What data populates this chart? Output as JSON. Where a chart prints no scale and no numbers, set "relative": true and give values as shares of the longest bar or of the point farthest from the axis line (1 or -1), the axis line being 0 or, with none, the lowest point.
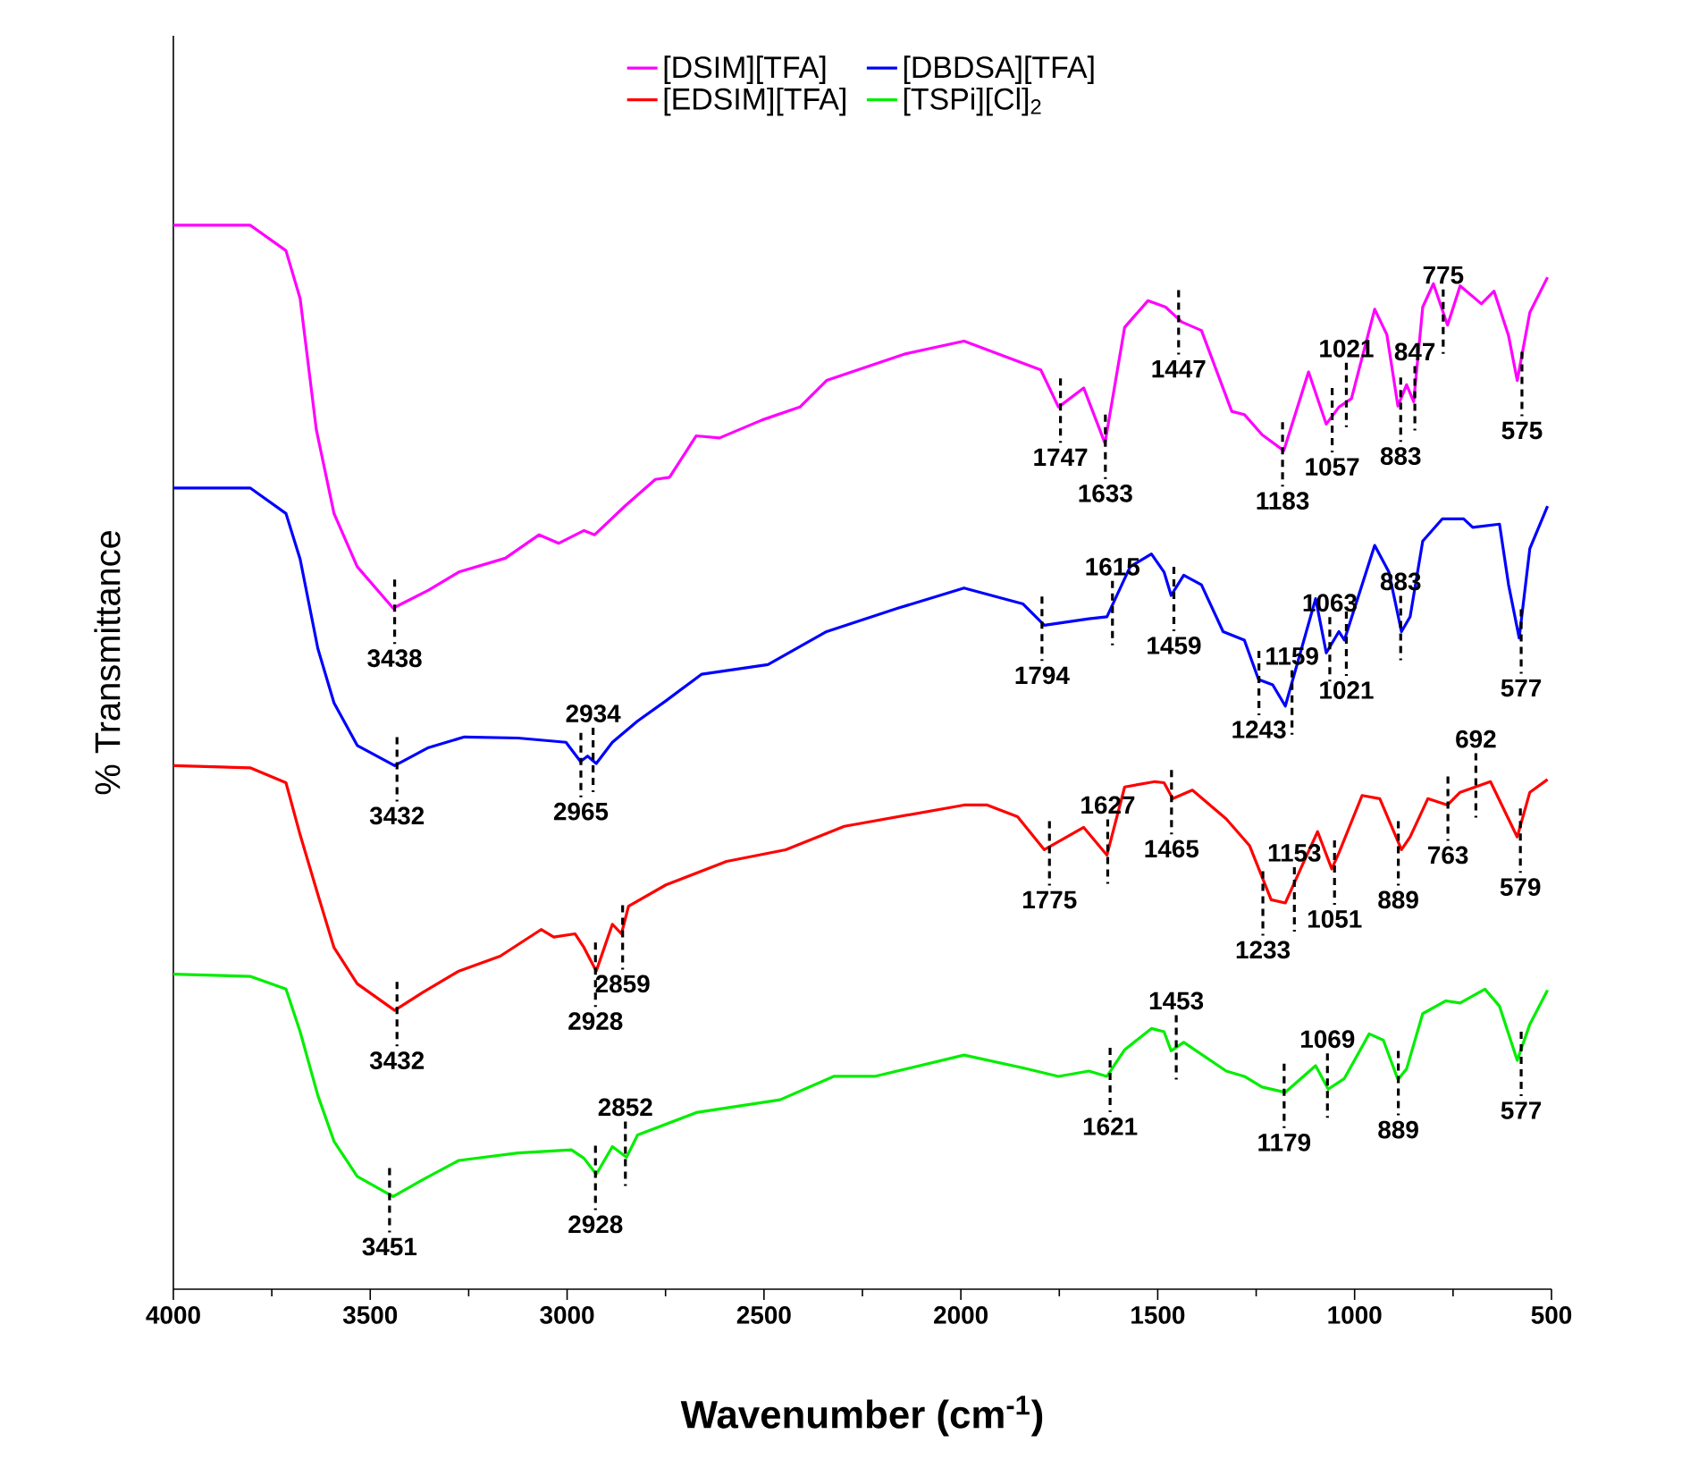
{
  "chart_data": {
    "type": "line",
    "relative": true,
    "xlabel": "Wavenumber (cm$^{-1}$)",
    "ylabel": "% Transmittance",
    "xlim": [
      4000,
      500
    ],
    "xticks": [
      4000,
      3500,
      3000,
      2500,
      2000,
      1500,
      1000,
      500
    ],
    "legend": "top",
    "grid": false,
    "series": [
      {
        "name": "[DSIM][TFA]",
        "color": "#ff00ff",
        "x": [
          4000,
          3805,
          3714,
          3678,
          3637,
          3592,
          3533,
          3442,
          3352,
          3275,
          3157,
          3071,
          3021,
          2957,
          2930,
          2853,
          2776,
          2740,
          2672,
          2613,
          2504,
          2409,
          2341,
          2141,
          1992,
          1797,
          1752,
          1688,
          1634,
          1584,
          1525,
          1480,
          1439,
          1389,
          1312,
          1280,
          1235,
          1180,
          1117,
          1072,
          1040,
          1008,
          949,
          918,
          890,
          868,
          850,
          827,
          800,
          764,
          732,
          678,
          646,
          609,
          587,
          555,
          510
        ],
        "values": [
          1.0,
          1.0,
          0.976,
          0.931,
          0.808,
          0.729,
          0.679,
          0.64,
          0.657,
          0.674,
          0.687,
          0.709,
          0.701,
          0.713,
          0.709,
          0.736,
          0.761,
          0.763,
          0.802,
          0.8,
          0.817,
          0.829,
          0.854,
          0.879,
          0.891,
          0.864,
          0.829,
          0.847,
          0.795,
          0.904,
          0.929,
          0.923,
          0.909,
          0.901,
          0.825,
          0.822,
          0.803,
          0.788,
          0.862,
          0.813,
          0.829,
          0.837,
          0.921,
          0.897,
          0.83,
          0.85,
          0.834,
          0.923,
          0.945,
          0.906,
          0.943,
          0.926,
          0.938,
          0.896,
          0.854,
          0.918,
          0.951
        ]
      },
      {
        "name": "[DBDSA][TFA]",
        "color": "#0000ff",
        "x": [
          4000,
          3805,
          3714,
          3678,
          3633,
          3592,
          3533,
          3438,
          3352,
          3261,
          3125,
          3003,
          2966,
          2948,
          2926,
          2885,
          2821,
          2749,
          2658,
          2490,
          2341,
          2160,
          1992,
          1842,
          1788,
          1675,
          1629,
          1570,
          1516,
          1484,
          1466,
          1434,
          1389,
          1334,
          1280,
          1244,
          1208,
          1176,
          1099,
          1072,
          1040,
          1026,
          949,
          913,
          881,
          859,
          827,
          777,
          723,
          700,
          632,
          609,
          582,
          555,
          510
        ],
        "values": [
          0.753,
          0.753,
          0.729,
          0.686,
          0.602,
          0.551,
          0.511,
          0.492,
          0.509,
          0.519,
          0.518,
          0.514,
          0.496,
          0.501,
          0.494,
          0.514,
          0.534,
          0.553,
          0.578,
          0.587,
          0.618,
          0.64,
          0.659,
          0.644,
          0.624,
          0.63,
          0.632,
          0.679,
          0.691,
          0.674,
          0.652,
          0.671,
          0.662,
          0.618,
          0.61,
          0.573,
          0.568,
          0.548,
          0.649,
          0.598,
          0.618,
          0.61,
          0.699,
          0.674,
          0.618,
          0.632,
          0.703,
          0.724,
          0.724,
          0.716,
          0.719,
          0.662,
          0.612,
          0.696,
          0.736
        ]
      },
      {
        "name": "[EDSIM][TFA]",
        "color": "#ff0000",
        "x": [
          4000,
          3805,
          3714,
          3678,
          3633,
          3592,
          3533,
          3438,
          3366,
          3275,
          3170,
          3066,
          3034,
          2980,
          2957,
          2926,
          2885,
          2862,
          2844,
          2749,
          2595,
          2445,
          2296,
          1992,
          1933,
          1856,
          1788,
          1688,
          1629,
          1584,
          1507,
          1484,
          1462,
          1412,
          1326,
          1267,
          1212,
          1176,
          1131,
          1094,
          1058,
          1040,
          981,
          936,
          881,
          859,
          814,
          764,
          732,
          655,
          587,
          555,
          510
        ],
        "values": [
          0.492,
          0.49,
          0.476,
          0.427,
          0.371,
          0.321,
          0.287,
          0.262,
          0.279,
          0.299,
          0.313,
          0.338,
          0.331,
          0.334,
          0.321,
          0.299,
          0.343,
          0.334,
          0.36,
          0.38,
          0.402,
          0.413,
          0.435,
          0.455,
          0.455,
          0.444,
          0.413,
          0.434,
          0.408,
          0.472,
          0.477,
          0.476,
          0.461,
          0.469,
          0.442,
          0.417,
          0.366,
          0.363,
          0.4,
          0.43,
          0.395,
          0.41,
          0.464,
          0.461,
          0.413,
          0.425,
          0.461,
          0.455,
          0.467,
          0.477,
          0.425,
          0.467,
          0.479
        ]
      },
      {
        "name": "[TSPi][Cl]$_{2}$",
        "color": "#00ee00",
        "x": [
          4000,
          3805,
          3714,
          3678,
          3633,
          3592,
          3533,
          3442,
          3366,
          3275,
          3125,
          2989,
          2957,
          2926,
          2885,
          2849,
          2821,
          2672,
          2459,
          2323,
          2219,
          1992,
          1842,
          1752,
          1675,
          1629,
          1584,
          1516,
          1484,
          1466,
          1434,
          1326,
          1280,
          1235,
          1176,
          1099,
          1067,
          1026,
          963,
          927,
          890,
          868,
          827,
          768,
          732,
          669,
          632,
          587,
          555,
          510
        ],
        "values": [
          0.296,
          0.294,
          0.282,
          0.242,
          0.182,
          0.139,
          0.106,
          0.087,
          0.103,
          0.121,
          0.128,
          0.131,
          0.123,
          0.108,
          0.134,
          0.124,
          0.145,
          0.166,
          0.178,
          0.2,
          0.2,
          0.22,
          0.208,
          0.2,
          0.205,
          0.2,
          0.225,
          0.245,
          0.242,
          0.224,
          0.232,
          0.205,
          0.2,
          0.19,
          0.185,
          0.21,
          0.188,
          0.198,
          0.24,
          0.234,
          0.197,
          0.207,
          0.259,
          0.271,
          0.269,
          0.282,
          0.266,
          0.215,
          0.249,
          0.281
        ]
      }
    ],
    "annotations": [
      {
        "text": "3438",
        "x": 3438,
        "y": 0.64
      },
      {
        "text": "1747",
        "x": 1747,
        "y": 0.829
      },
      {
        "text": "1633",
        "x": 1633,
        "y": 0.795
      },
      {
        "text": "1447",
        "x": 1447,
        "y": 0.912
      },
      {
        "text": "1183",
        "x": 1183,
        "y": 0.788
      },
      {
        "text": "1057",
        "x": 1057,
        "y": 0.82
      },
      {
        "text": "1021",
        "x": 1021,
        "y": 0.837
      },
      {
        "text": "883",
        "x": 883,
        "y": 0.83
      },
      {
        "text": "847",
        "x": 847,
        "y": 0.834
      },
      {
        "text": "775",
        "x": 775,
        "y": 0.906
      },
      {
        "text": "575",
        "x": 575,
        "y": 0.854
      },
      {
        "text": "3432",
        "x": 3432,
        "y": 0.492
      },
      {
        "text": "2965",
        "x": 2965,
        "y": 0.496
      },
      {
        "text": "2934",
        "x": 2934,
        "y": 0.494
      },
      {
        "text": "1794",
        "x": 1794,
        "y": 0.624
      },
      {
        "text": "1615",
        "x": 1615,
        "y": 0.632
      },
      {
        "text": "1459",
        "x": 1459,
        "y": 0.652
      },
      {
        "text": "1243",
        "x": 1243,
        "y": 0.573
      },
      {
        "text": "1159",
        "x": 1159,
        "y": 0.548
      },
      {
        "text": "1063",
        "x": 1063,
        "y": 0.598
      },
      {
        "text": "1021",
        "x": 1021,
        "y": 0.61
      },
      {
        "text": "883",
        "x": 883,
        "y": 0.618
      },
      {
        "text": "577",
        "x": 577,
        "y": 0.612
      },
      {
        "text": "3432",
        "x": 3432,
        "y": 0.262
      },
      {
        "text": "2928",
        "x": 2928,
        "y": 0.299
      },
      {
        "text": "2859",
        "x": 2859,
        "y": 0.334
      },
      {
        "text": "1775",
        "x": 1775,
        "y": 0.413
      },
      {
        "text": "1627",
        "x": 1627,
        "y": 0.408
      },
      {
        "text": "1465",
        "x": 1465,
        "y": 0.461
      },
      {
        "text": "1233",
        "x": 1233,
        "y": 0.366
      },
      {
        "text": "1153",
        "x": 1153,
        "y": 0.363
      },
      {
        "text": "1051",
        "x": 1051,
        "y": 0.395
      },
      {
        "text": "889",
        "x": 889,
        "y": 0.413
      },
      {
        "text": "763",
        "x": 763,
        "y": 0.455
      },
      {
        "text": "692",
        "x": 692,
        "y": 0.47
      },
      {
        "text": "579",
        "x": 579,
        "y": 0.425
      },
      {
        "text": "3451",
        "x": 3451,
        "y": 0.087
      },
      {
        "text": "2928",
        "x": 2928,
        "y": 0.108
      },
      {
        "text": "2852",
        "x": 2852,
        "y": 0.124
      },
      {
        "text": "1621",
        "x": 1621,
        "y": 0.2
      },
      {
        "text": "1453",
        "x": 1453,
        "y": 0.224
      },
      {
        "text": "1179",
        "x": 1179,
        "y": 0.185
      },
      {
        "text": "1069",
        "x": 1069,
        "y": 0.188
      },
      {
        "text": "889",
        "x": 889,
        "y": 0.197
      },
      {
        "text": "577",
        "x": 577,
        "y": 0.215
      }
    ]
  }
}
